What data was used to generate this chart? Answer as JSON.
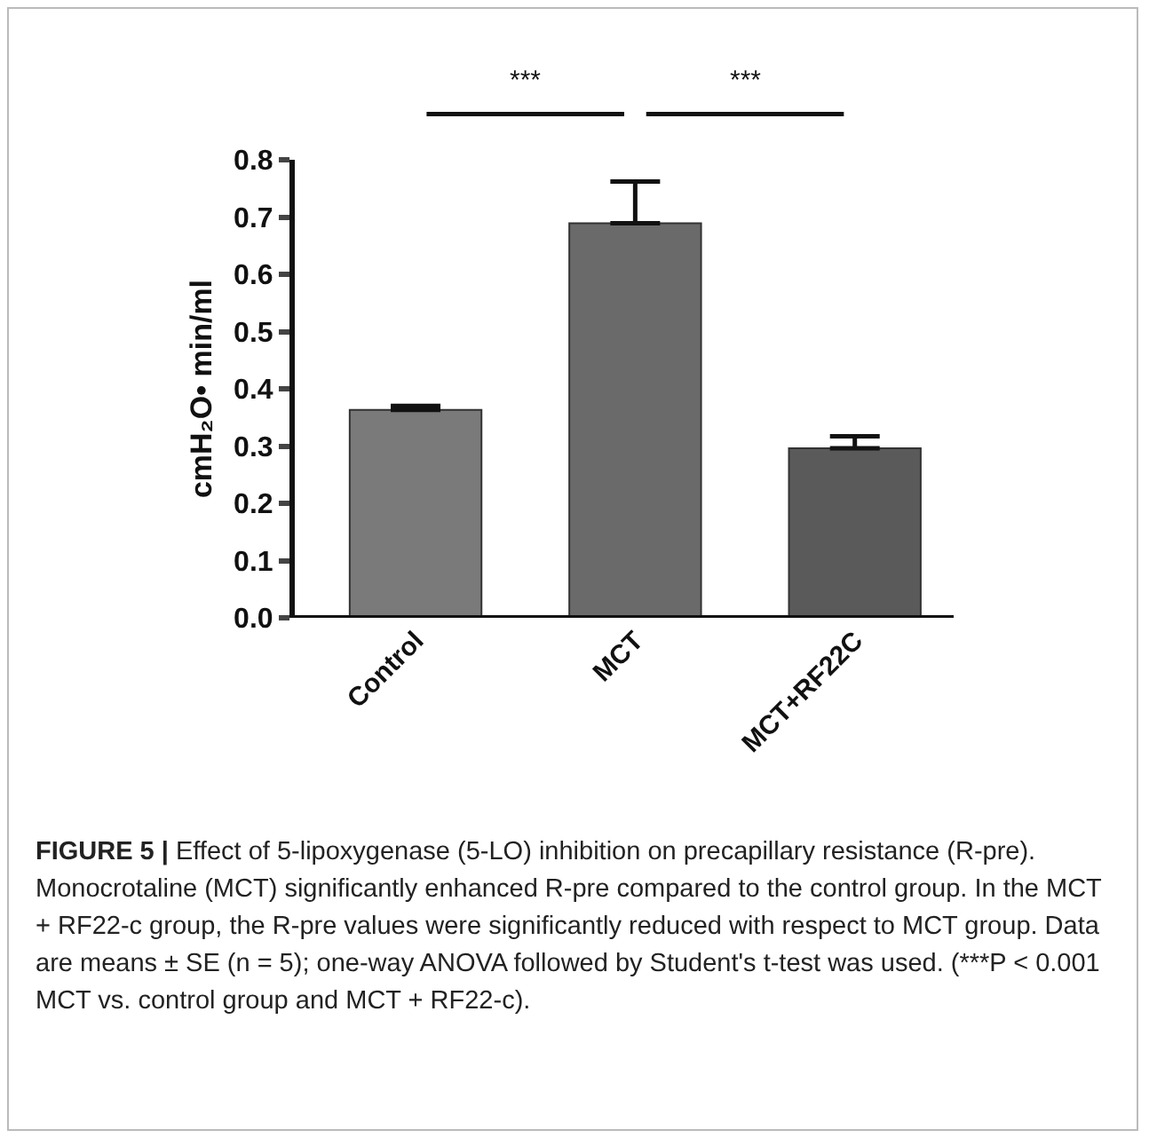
{
  "chart_data": {
    "type": "bar",
    "ylabel": "cmH₂O• min/ml",
    "categories": [
      "Control",
      "MCT",
      "MCT+RF22C"
    ],
    "values": [
      0.363,
      0.689,
      0.296
    ],
    "errors": [
      [
        0.363,
        0.37
      ],
      [
        0.689,
        0.762
      ],
      [
        0.296,
        0.317
      ]
    ],
    "colors": [
      "#7a7a7a",
      "#6a6a6a",
      "#5a5a5a"
    ],
    "ylim": [
      0,
      0.8
    ],
    "yticks": [
      {
        "value": 0,
        "label": "0.0"
      },
      0.1,
      0.2,
      0.3,
      0.4,
      0.5,
      0.6,
      0.7,
      0.8
    ],
    "grid": false,
    "annotations": [
      "***",
      "***",
      "FIGURE 5 | Effect of 5-lipoxygenase (5-LO) inhibition on precapillary resistance (R-pre). Monocrotaline (MCT) significantly enhanced R-pre compared to the control group. In the MCT + RF22-c group, the R-pre values were significantly reduced with respect to MCT group. Data are means ± SE (n = 5); one-way ANOVA followed by Student's t-test was used. (***P < 0.001 MCT vs. control group and MCT + RF22-c)."
    ]
  }
}
